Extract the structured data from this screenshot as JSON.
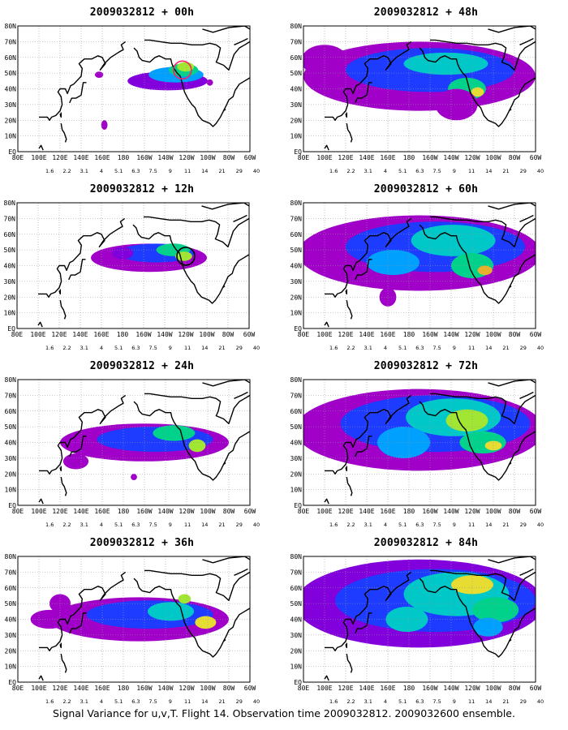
{
  "figure": {
    "caption": "Signal Variance for u,v,T. Flight 14. Observation time 2009032812. 2009032600 ensemble."
  },
  "colorbar": {
    "labels": [
      "1.6",
      "2.2",
      "3.1",
      "4",
      "5.1",
      "6.3",
      "7.5",
      "9",
      "11",
      "14",
      "21",
      "29",
      "40"
    ],
    "colors": [
      "#a000c8",
      "#8200dc",
      "#1e3cff",
      "#00a0ff",
      "#00c8c8",
      "#00d28c",
      "#00dc00",
      "#a0e632",
      "#e6dc32",
      "#e6af2d",
      "#f08228",
      "#fa3c3c",
      "#f00082"
    ]
  },
  "axes": {
    "x_ticks": [
      "80E",
      "100E",
      "120E",
      "140E",
      "160E",
      "180",
      "160W",
      "140W",
      "120W",
      "100W",
      "80W",
      "60W"
    ],
    "y_ticks": [
      "EQ",
      "10N",
      "20N",
      "30N",
      "40N",
      "50N",
      "60N",
      "70N",
      "80N"
    ]
  },
  "chart_data": [
    {
      "type": "heatmap",
      "title": "2009032812 + 00h",
      "xlim": [
        80,
        300
      ],
      "ylim": [
        0,
        80
      ],
      "circle": "red"
    },
    {
      "type": "heatmap",
      "title": "2009032812 + 12h",
      "xlim": [
        80,
        300
      ],
      "ylim": [
        0,
        80
      ],
      "circle": "black"
    },
    {
      "type": "heatmap",
      "title": "2009032812 + 24h",
      "xlim": [
        80,
        300
      ],
      "ylim": [
        0,
        80
      ]
    },
    {
      "type": "heatmap",
      "title": "2009032812 + 36h",
      "xlim": [
        80,
        300
      ],
      "ylim": [
        0,
        80
      ]
    },
    {
      "type": "heatmap",
      "title": "2009032812 + 48h",
      "xlim": [
        80,
        300
      ],
      "ylim": [
        0,
        80
      ]
    },
    {
      "type": "heatmap",
      "title": "2009032812 + 60h",
      "xlim": [
        80,
        300
      ],
      "ylim": [
        0,
        80
      ]
    },
    {
      "type": "heatmap",
      "title": "2009032812 + 72h",
      "xlim": [
        80,
        300
      ],
      "ylim": [
        0,
        80
      ]
    },
    {
      "type": "heatmap",
      "title": "2009032812 + 84h",
      "xlim": [
        80,
        300
      ],
      "ylim": [
        0,
        80
      ]
    }
  ]
}
